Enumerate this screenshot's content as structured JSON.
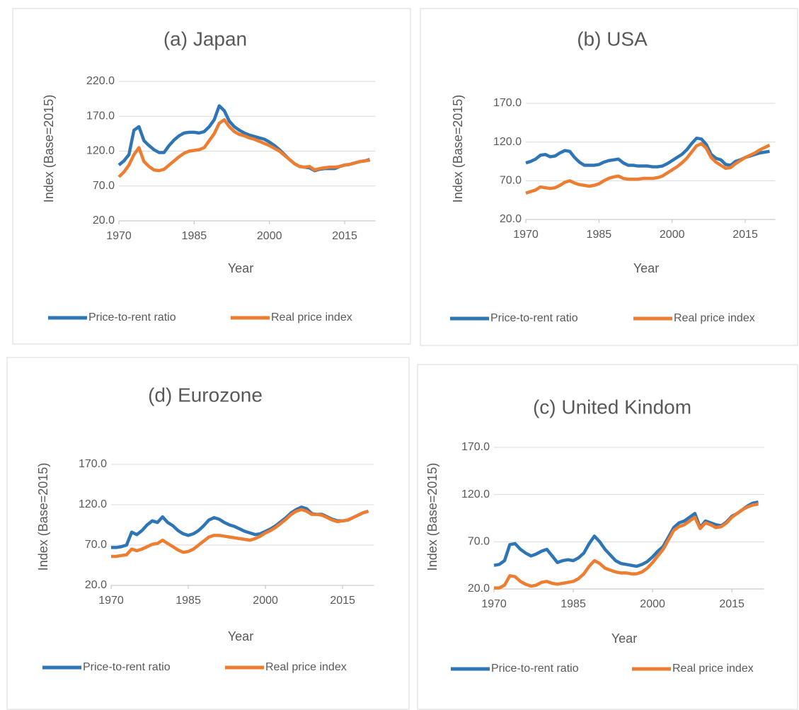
{
  "chart_data": [
    {
      "type": "line",
      "title": "(a) Japan",
      "xlabel": "Year",
      "ylabel": "Index (Base=2015)",
      "x": [
        1970,
        1971,
        1972,
        1973,
        1974,
        1975,
        1976,
        1977,
        1978,
        1979,
        1980,
        1981,
        1982,
        1983,
        1984,
        1985,
        1986,
        1987,
        1988,
        1989,
        1990,
        1991,
        1992,
        1993,
        1994,
        1995,
        1996,
        1997,
        1998,
        1999,
        2000,
        2001,
        2002,
        2003,
        2004,
        2005,
        2006,
        2007,
        2008,
        2009,
        2010,
        2011,
        2012,
        2013,
        2014,
        2015,
        2016,
        2017,
        2018,
        2019,
        2020
      ],
      "series": [
        {
          "name": "Price-to-rent ratio",
          "color": "#2e75b6",
          "values": [
            100,
            106,
            115,
            150,
            155,
            135,
            128,
            122,
            118,
            118,
            128,
            136,
            142,
            146,
            147,
            147,
            146,
            148,
            155,
            165,
            185,
            178,
            163,
            155,
            150,
            146,
            143,
            141,
            139,
            137,
            133,
            128,
            122,
            115,
            108,
            102,
            98,
            97,
            96,
            92,
            94,
            95,
            95,
            95,
            98,
            100,
            101,
            103,
            105,
            106,
            108
          ]
        },
        {
          "name": "Real price index",
          "color": "#ed7d31",
          "values": [
            83,
            90,
            100,
            115,
            125,
            105,
            98,
            93,
            92,
            94,
            100,
            106,
            112,
            117,
            120,
            121,
            122,
            125,
            135,
            145,
            160,
            165,
            155,
            148,
            144,
            142,
            139,
            137,
            134,
            131,
            128,
            124,
            120,
            114,
            108,
            102,
            98,
            97,
            98,
            93,
            95,
            96,
            97,
            97,
            98,
            100,
            101,
            103,
            105,
            106,
            107
          ]
        }
      ],
      "xlim": [
        1970,
        2020
      ],
      "xticks": [
        1970,
        1985,
        2000,
        2015
      ],
      "ylim": [
        20,
        220
      ],
      "yticks": [
        {
          "value": 20,
          "label": "20.0"
        },
        {
          "value": 70,
          "label": "70.0"
        },
        {
          "value": 120,
          "label": "120.0"
        },
        {
          "value": 170,
          "label": "170.0"
        },
        {
          "value": 220,
          "label": "220.0"
        }
      ],
      "grid": true,
      "legend": "bottom"
    },
    {
      "type": "line",
      "title": "(b) USA",
      "xlabel": "Year",
      "ylabel": "Index (Base=2015)",
      "x": [
        1970,
        1971,
        1972,
        1973,
        1974,
        1975,
        1976,
        1977,
        1978,
        1979,
        1980,
        1981,
        1982,
        1983,
        1984,
        1985,
        1986,
        1987,
        1988,
        1989,
        1990,
        1991,
        1992,
        1993,
        1994,
        1995,
        1996,
        1997,
        1998,
        1999,
        2000,
        2001,
        2002,
        2003,
        2004,
        2005,
        2006,
        2007,
        2008,
        2009,
        2010,
        2011,
        2012,
        2013,
        2014,
        2015,
        2016,
        2017,
        2018,
        2019,
        2020
      ],
      "series": [
        {
          "name": "Price-to-rent ratio",
          "color": "#2e75b6",
          "values": [
            93,
            95,
            98,
            103,
            104,
            101,
            102,
            106,
            109,
            108,
            100,
            94,
            90,
            90,
            90,
            91,
            94,
            96,
            97,
            98,
            93,
            90,
            90,
            89,
            89,
            89,
            88,
            88,
            89,
            92,
            96,
            100,
            104,
            110,
            118,
            125,
            124,
            117,
            104,
            99,
            97,
            91,
            90,
            95,
            97,
            100,
            102,
            104,
            106,
            107,
            108
          ]
        },
        {
          "name": "Real price index",
          "color": "#ed7d31",
          "values": [
            54,
            56,
            58,
            62,
            61,
            60,
            61,
            64,
            68,
            70,
            67,
            65,
            64,
            63,
            64,
            66,
            70,
            73,
            75,
            76,
            73,
            72,
            72,
            72,
            73,
            73,
            73,
            74,
            76,
            80,
            84,
            88,
            93,
            99,
            107,
            115,
            118,
            112,
            100,
            94,
            90,
            86,
            87,
            92,
            96,
            100,
            103,
            106,
            110,
            113,
            116
          ]
        }
      ],
      "xlim": [
        1970,
        2020
      ],
      "xticks": [
        1970,
        1985,
        2000,
        2015
      ],
      "ylim": [
        20,
        170
      ],
      "yticks": [
        {
          "value": 20,
          "label": "20.0"
        },
        {
          "value": 70,
          "label": "70.0"
        },
        {
          "value": 120,
          "label": "120.0"
        },
        {
          "value": 170,
          "label": "170.0"
        }
      ],
      "grid": true,
      "legend": "bottom"
    },
    {
      "type": "line",
      "title": "(d) Eurozone",
      "xlabel": "Year",
      "ylabel": "Index (Base=2015)",
      "x": [
        1970,
        1971,
        1972,
        1973,
        1974,
        1975,
        1976,
        1977,
        1978,
        1979,
        1980,
        1981,
        1982,
        1983,
        1984,
        1985,
        1986,
        1987,
        1988,
        1989,
        1990,
        1991,
        1992,
        1993,
        1994,
        1995,
        1996,
        1997,
        1998,
        1999,
        2000,
        2001,
        2002,
        2003,
        2004,
        2005,
        2006,
        2007,
        2008,
        2009,
        2010,
        2011,
        2012,
        2013,
        2014,
        2015,
        2016,
        2017,
        2018,
        2019,
        2020
      ],
      "series": [
        {
          "name": "Price-to-rent ratio",
          "color": "#2e75b6",
          "values": [
            67,
            67,
            68,
            70,
            86,
            83,
            88,
            95,
            100,
            98,
            105,
            98,
            94,
            88,
            84,
            82,
            84,
            88,
            94,
            101,
            104,
            102,
            98,
            95,
            93,
            90,
            87,
            85,
            83,
            84,
            87,
            90,
            94,
            99,
            104,
            110,
            114,
            117,
            115,
            109,
            108,
            108,
            105,
            102,
            100,
            100,
            101,
            104,
            107,
            110,
            112
          ]
        },
        {
          "name": "Real price index",
          "color": "#ed7d31",
          "values": [
            56,
            56,
            57,
            58,
            65,
            63,
            65,
            68,
            71,
            72,
            76,
            72,
            68,
            64,
            61,
            62,
            65,
            70,
            75,
            80,
            82,
            82,
            81,
            80,
            79,
            78,
            77,
            76,
            78,
            81,
            85,
            88,
            92,
            97,
            102,
            108,
            112,
            114,
            112,
            108,
            108,
            107,
            104,
            101,
            99,
            100,
            101,
            104,
            107,
            110,
            112
          ]
        }
      ],
      "xlim": [
        1970,
        2020
      ],
      "xticks": [
        1970,
        1985,
        2000,
        2015
      ],
      "ylim": [
        20,
        170
      ],
      "yticks": [
        {
          "value": 20,
          "label": "20.0"
        },
        {
          "value": 70,
          "label": "70.0"
        },
        {
          "value": 120,
          "label": "120.0"
        },
        {
          "value": 170,
          "label": "170.0"
        }
      ],
      "grid": true,
      "legend": "bottom"
    },
    {
      "type": "line",
      "title": "(c) United Kindom",
      "xlabel": "Year",
      "ylabel": "Index (Base=2015)",
      "x": [
        1970,
        1971,
        1972,
        1973,
        1974,
        1975,
        1976,
        1977,
        1978,
        1979,
        1980,
        1981,
        1982,
        1983,
        1984,
        1985,
        1986,
        1987,
        1988,
        1989,
        1990,
        1991,
        1992,
        1993,
        1994,
        1995,
        1996,
        1997,
        1998,
        1999,
        2000,
        2001,
        2002,
        2003,
        2004,
        2005,
        2006,
        2007,
        2008,
        2009,
        2010,
        2011,
        2012,
        2013,
        2014,
        2015,
        2016,
        2017,
        2018,
        2019,
        2020
      ],
      "series": [
        {
          "name": "Price-to-rent ratio",
          "color": "#2e75b6",
          "values": [
            45,
            46,
            50,
            67,
            68,
            62,
            58,
            55,
            57,
            60,
            62,
            55,
            48,
            50,
            51,
            50,
            53,
            58,
            68,
            76,
            70,
            62,
            56,
            50,
            47,
            46,
            45,
            44,
            46,
            49,
            54,
            60,
            65,
            75,
            85,
            90,
            92,
            96,
            100,
            85,
            92,
            90,
            88,
            87,
            91,
            97,
            100,
            104,
            108,
            111,
            112
          ]
        },
        {
          "name": "Real price index",
          "color": "#ed7d31",
          "values": [
            21,
            21,
            24,
            34,
            33,
            28,
            25,
            23,
            24,
            27,
            28,
            26,
            25,
            26,
            27,
            28,
            31,
            36,
            44,
            50,
            47,
            42,
            40,
            38,
            37,
            37,
            36,
            36,
            38,
            42,
            48,
            55,
            62,
            72,
            82,
            86,
            88,
            92,
            96,
            84,
            90,
            88,
            85,
            86,
            90,
            96,
            100,
            104,
            107,
            109,
            110
          ]
        }
      ],
      "xlim": [
        1970,
        2020
      ],
      "xticks": [
        1970,
        1985,
        2000,
        2015
      ],
      "ylim": [
        20,
        170
      ],
      "yticks": [
        {
          "value": 20,
          "label": "20.0"
        },
        {
          "value": 70,
          "label": "70.0"
        },
        {
          "value": 120,
          "label": "120.0"
        },
        {
          "value": 170,
          "label": "170.0"
        }
      ],
      "grid": true,
      "legend": "bottom"
    }
  ]
}
